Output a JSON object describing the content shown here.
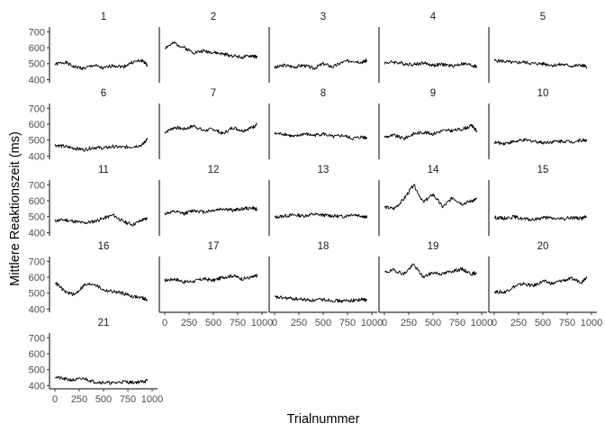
{
  "chart_data": {
    "type": "line",
    "layout": "facet_wrap",
    "ncol": 5,
    "xlabel": "Trialnummer",
    "ylabel": "Mittlere Reaktionszeit (ms)",
    "xlim": [
      0,
      1000
    ],
    "ylim": [
      380,
      730
    ],
    "xticks": [
      0,
      250,
      500,
      750,
      1000
    ],
    "xtick_labels": [
      "0",
      "250",
      "500",
      "750",
      "1000"
    ],
    "yticks": [
      400,
      500,
      600,
      700
    ],
    "ytick_labels": [
      "400",
      "500",
      "600",
      "700"
    ],
    "grid": false,
    "panels": [
      {
        "label": "1",
        "x": [
          0,
          100,
          200,
          300,
          400,
          500,
          600,
          700,
          800,
          900,
          950
        ],
        "y": [
          495,
          510,
          480,
          470,
          490,
          470,
          490,
          480,
          510,
          520,
          490
        ]
      },
      {
        "label": "2",
        "x": [
          0,
          100,
          200,
          300,
          400,
          500,
          600,
          700,
          800,
          900,
          950
        ],
        "y": [
          600,
          630,
          600,
          570,
          580,
          570,
          560,
          550,
          540,
          550,
          540
        ]
      },
      {
        "label": "3",
        "x": [
          0,
          100,
          200,
          300,
          400,
          500,
          600,
          700,
          800,
          900,
          950
        ],
        "y": [
          475,
          490,
          480,
          490,
          470,
          500,
          480,
          510,
          520,
          510,
          520
        ]
      },
      {
        "label": "4",
        "x": [
          0,
          100,
          200,
          300,
          400,
          500,
          600,
          700,
          800,
          900,
          950
        ],
        "y": [
          505,
          510,
          500,
          495,
          505,
          490,
          495,
          485,
          500,
          490,
          480
        ]
      },
      {
        "label": "5",
        "x": [
          0,
          100,
          200,
          300,
          400,
          500,
          600,
          700,
          800,
          900,
          950
        ],
        "y": [
          520,
          515,
          505,
          510,
          500,
          500,
          490,
          495,
          485,
          490,
          480
        ]
      },
      {
        "label": "6",
        "x": [
          0,
          100,
          200,
          300,
          400,
          500,
          600,
          700,
          800,
          900,
          950
        ],
        "y": [
          470,
          460,
          450,
          440,
          455,
          450,
          460,
          455,
          460,
          470,
          510
        ]
      },
      {
        "label": "7",
        "x": [
          0,
          100,
          200,
          300,
          400,
          500,
          600,
          700,
          800,
          900,
          950
        ],
        "y": [
          550,
          580,
          570,
          590,
          560,
          570,
          540,
          580,
          560,
          580,
          600
        ]
      },
      {
        "label": "8",
        "x": [
          0,
          100,
          200,
          300,
          400,
          500,
          600,
          700,
          800,
          900,
          950
        ],
        "y": [
          540,
          540,
          520,
          540,
          530,
          540,
          520,
          530,
          510,
          520,
          515
        ]
      },
      {
        "label": "9",
        "x": [
          0,
          100,
          200,
          300,
          400,
          500,
          600,
          700,
          800,
          900,
          950
        ],
        "y": [
          520,
          530,
          510,
          540,
          550,
          540,
          560,
          560,
          570,
          590,
          560
        ]
      },
      {
        "label": "10",
        "x": [
          0,
          100,
          200,
          300,
          400,
          500,
          600,
          700,
          800,
          900,
          950
        ],
        "y": [
          485,
          480,
          490,
          500,
          495,
          485,
          490,
          495,
          490,
          500,
          500
        ]
      },
      {
        "label": "11",
        "x": [
          0,
          100,
          200,
          300,
          400,
          500,
          600,
          700,
          800,
          900,
          950
        ],
        "y": [
          475,
          480,
          470,
          460,
          470,
          490,
          510,
          470,
          450,
          480,
          490
        ]
      },
      {
        "label": "12",
        "x": [
          0,
          100,
          200,
          300,
          400,
          500,
          600,
          700,
          800,
          900,
          950
        ],
        "y": [
          520,
          530,
          520,
          540,
          530,
          540,
          550,
          540,
          550,
          555,
          545
        ]
      },
      {
        "label": "13",
        "x": [
          0,
          100,
          200,
          300,
          400,
          500,
          600,
          700,
          800,
          900,
          950
        ],
        "y": [
          495,
          505,
          510,
          505,
          515,
          510,
          505,
          500,
          515,
          505,
          495
        ]
      },
      {
        "label": "14",
        "x": [
          0,
          100,
          200,
          300,
          400,
          500,
          600,
          700,
          800,
          900,
          950
        ],
        "y": [
          560,
          550,
          610,
          700,
          590,
          640,
          560,
          620,
          580,
          600,
          610
        ]
      },
      {
        "label": "15",
        "x": [
          0,
          100,
          200,
          300,
          400,
          500,
          600,
          700,
          800,
          900,
          950
        ],
        "y": [
          495,
          490,
          500,
          485,
          480,
          495,
          490,
          485,
          495,
          490,
          500
        ]
      },
      {
        "label": "16",
        "x": [
          0,
          100,
          200,
          300,
          400,
          500,
          600,
          700,
          800,
          900,
          950
        ],
        "y": [
          570,
          510,
          490,
          550,
          560,
          520,
          510,
          500,
          480,
          470,
          460
        ]
      },
      {
        "label": "17",
        "x": [
          0,
          100,
          200,
          300,
          400,
          500,
          600,
          700,
          800,
          900,
          950
        ],
        "y": [
          580,
          590,
          570,
          575,
          590,
          580,
          600,
          610,
          590,
          600,
          610
        ]
      },
      {
        "label": "18",
        "x": [
          0,
          100,
          200,
          300,
          400,
          500,
          600,
          700,
          800,
          900,
          950
        ],
        "y": [
          475,
          470,
          465,
          460,
          455,
          460,
          455,
          450,
          455,
          460,
          455
        ]
      },
      {
        "label": "19",
        "x": [
          0,
          100,
          200,
          300,
          400,
          500,
          600,
          700,
          800,
          900,
          950
        ],
        "y": [
          630,
          645,
          620,
          680,
          600,
          630,
          620,
          640,
          650,
          620,
          630
        ]
      },
      {
        "label": "20",
        "x": [
          0,
          100,
          200,
          300,
          400,
          500,
          600,
          700,
          800,
          900,
          950
        ],
        "y": [
          510,
          505,
          540,
          560,
          545,
          575,
          560,
          580,
          590,
          570,
          605
        ]
      },
      {
        "label": "21",
        "x": [
          0,
          100,
          200,
          300,
          400,
          500,
          600,
          700,
          800,
          900,
          950
        ],
        "y": [
          455,
          440,
          435,
          445,
          425,
          420,
          415,
          425,
          420,
          425,
          430
        ]
      }
    ]
  }
}
